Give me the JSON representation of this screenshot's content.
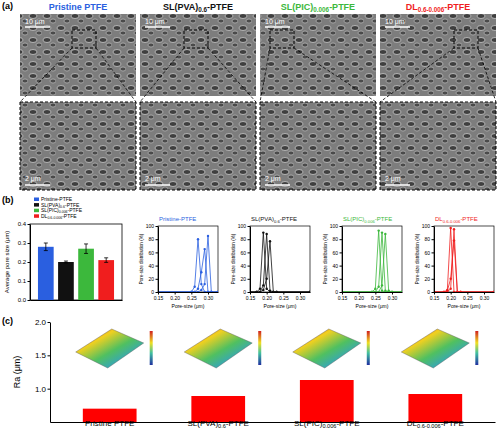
{
  "panel_labels": [
    "(a)",
    "(b)",
    "(c)"
  ],
  "panel_a": {
    "titles": [
      [
        "Pristine PTFE"
      ],
      [
        "SL(PVA)",
        "0.6",
        "-PTFE"
      ],
      [
        "SL(PIC)",
        "0.006",
        "-PTFE"
      ],
      [
        "DL",
        "0.6-0.006",
        "-PTFE"
      ]
    ],
    "colors": [
      "#2a5fe0",
      "#111111",
      "#3cb83c",
      "#f01e1e"
    ],
    "scale_bars": [
      "10 μm",
      "2 μm"
    ]
  },
  "chart_data": [
    {
      "type": "bar",
      "ylabel": "Average pore size (μm)",
      "categories": [
        null
      ],
      "series": [
        {
          "name": [
            "Pristine-PTFE"
          ],
          "color": "#2a5fe0",
          "values": [
            0.28
          ],
          "errors": [
            0.02
          ]
        },
        {
          "name": [
            "SL(PVA)",
            "0.6",
            "-PTFE"
          ],
          "color": "#111111",
          "values": [
            0.2
          ],
          "errors": [
            0.005
          ]
        },
        {
          "name": [
            "SL(PIC)",
            "0.006",
            "-PTFE"
          ],
          "color": "#3cb83c",
          "values": [
            0.27
          ],
          "errors": [
            0.025
          ]
        },
        {
          "name": [
            "DL",
            "0.6-0.006",
            "-PTFE"
          ],
          "color": "#f01e1e",
          "values": [
            0.21
          ],
          "errors": [
            0.012
          ]
        }
      ],
      "ylim": [
        0,
        0.4
      ],
      "yticks": [
        {
          "value": 0,
          "label": "0.0"
        },
        0.1,
        0.2,
        0.3,
        0.4
      ],
      "legend": "top",
      "tick_labels": "y"
    },
    {
      "type": "line",
      "title": [
        "Pristine-PTFE"
      ],
      "color": "#2a5fe0",
      "marker": "circle",
      "xlabel": "Pore-size (μm)",
      "ylabel": "Pore-size distribution (%)",
      "x": [
        0.15,
        0.25,
        0.26,
        0.27,
        0.28,
        0.29,
        0.3,
        0.31,
        0.33
      ],
      "series": [
        {
          "values": [
            0,
            0,
            8,
            80,
            12,
            0,
            0,
            0,
            0
          ]
        },
        {
          "values": [
            0,
            0,
            0,
            5,
            30,
            65,
            0,
            0,
            0
          ]
        },
        {
          "values": [
            0,
            0,
            0,
            0,
            3,
            12,
            85,
            0,
            0
          ]
        }
      ],
      "xlim": [
        0.15,
        0.33
      ],
      "xticks": [
        0.15,
        {
          "value": 0.2,
          "label": "0.20"
        },
        0.25,
        {
          "value": 0.3,
          "label": "0.30"
        }
      ],
      "ylim": [
        0,
        100
      ],
      "yticks": [
        0,
        20,
        40,
        60,
        80,
        100
      ]
    },
    {
      "type": "line",
      "title": [
        "SL(PVA)",
        "0.6",
        "-PTFE"
      ],
      "color": "#111111",
      "marker": "circle",
      "xlabel": "Pore-size (μm)",
      "ylabel": "Pore-size distribution (%)",
      "x": [
        0.15,
        0.17,
        0.18,
        0.19,
        0.2,
        0.21,
        0.22,
        0.23,
        0.33
      ],
      "series": [
        {
          "values": [
            0,
            0,
            5,
            90,
            5,
            0,
            0,
            0,
            0
          ]
        },
        {
          "values": [
            0,
            0,
            0,
            10,
            88,
            2,
            0,
            0,
            0
          ]
        },
        {
          "values": [
            0,
            0,
            0,
            3,
            20,
            77,
            0,
            0,
            0
          ]
        }
      ],
      "xlim": [
        0.15,
        0.33
      ],
      "xticks": [
        0.15,
        {
          "value": 0.2,
          "label": "0.20"
        },
        0.25,
        {
          "value": 0.3,
          "label": "0.30"
        }
      ],
      "ylim": [
        0,
        100
      ],
      "yticks": [
        0,
        20,
        40,
        60,
        80,
        100
      ]
    },
    {
      "type": "line",
      "title": [
        "SL(PIC)",
        "0.006",
        "-PTFE"
      ],
      "color": "#3cb83c",
      "marker": "circle",
      "xlabel": "Pore-size (μm)",
      "ylabel": "Pore-size distribution (%)",
      "x": [
        0.15,
        0.24,
        0.25,
        0.26,
        0.27,
        0.28,
        0.29,
        0.3,
        0.33
      ],
      "series": [
        {
          "values": [
            0,
            0,
            5,
            93,
            2,
            0,
            0,
            0,
            0
          ]
        },
        {
          "values": [
            0,
            0,
            0,
            8,
            90,
            2,
            0,
            0,
            0
          ]
        },
        {
          "values": [
            0,
            0,
            0,
            0,
            10,
            88,
            2,
            0,
            0
          ]
        }
      ],
      "xlim": [
        0.15,
        0.33
      ],
      "xticks": [
        0.15,
        {
          "value": 0.2,
          "label": "0.20"
        },
        0.25,
        {
          "value": 0.3,
          "label": "0.30"
        }
      ],
      "ylim": [
        0,
        100
      ],
      "yticks": [
        0,
        20,
        40,
        60,
        80,
        100
      ]
    },
    {
      "type": "line",
      "title": [
        "DL",
        "0.6-0.006",
        "-PTFE"
      ],
      "color": "#f01e1e",
      "marker": "circle",
      "xlabel": "Pore-size (μm)",
      "ylabel": "Pore-size distribution (%)",
      "x": [
        0.15,
        0.18,
        0.19,
        0.2,
        0.21,
        0.22,
        0.23,
        0.33
      ],
      "series": [
        {
          "values": [
            0,
            0,
            3,
            97,
            0,
            0,
            0,
            0
          ]
        },
        {
          "values": [
            0,
            0,
            0,
            5,
            95,
            0,
            0,
            0
          ]
        },
        {
          "values": [
            0,
            0,
            2,
            20,
            78,
            0,
            0,
            0
          ]
        }
      ],
      "xlim": [
        0.15,
        0.33
      ],
      "xticks": [
        0.15,
        {
          "value": 0.2,
          "label": "0.20"
        },
        0.25,
        {
          "value": 0.3,
          "label": "0.30"
        }
      ],
      "ylim": [
        0,
        100
      ],
      "yticks": [
        0,
        20,
        40,
        60,
        80,
        100
      ]
    },
    {
      "type": "bar",
      "ylabel": "Ra (μm)",
      "categories": [
        [
          "Pristine PTFE"
        ],
        [
          "SL(PVA)",
          "0.6",
          "-PTFE"
        ],
        [
          "SL(PIC)",
          "0.006",
          "-PTFE"
        ],
        [
          "DL",
          "0.6-0.006",
          "-PTFE"
        ]
      ],
      "values": [
        0.7,
        0.89,
        1.13,
        0.92
      ],
      "color": "#ff0000",
      "ylim": [
        0.5,
        2.0
      ],
      "yticks": [
        {
          "value": 1,
          "label": "1.0"
        },
        1.5,
        {
          "value": 2,
          "label": "2.0"
        }
      ]
    }
  ]
}
